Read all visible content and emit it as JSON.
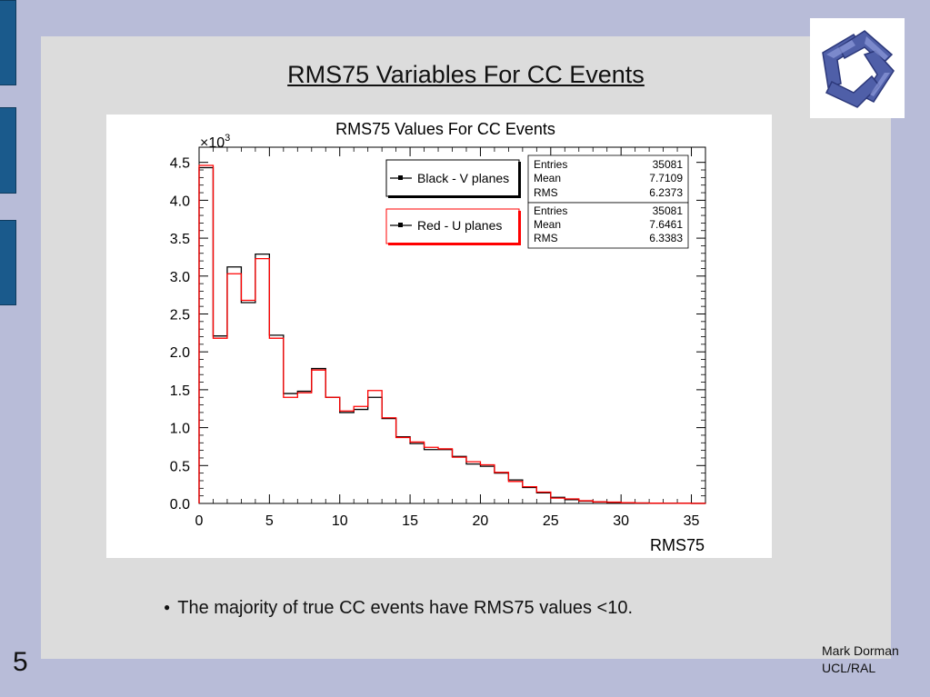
{
  "slide": {
    "title": "RMS75 Variables For CC Events",
    "bullet": "The majority of true CC events have RMS75 values <10.",
    "bullet_glyph": "●",
    "page_number": "5",
    "author_line1": "Mark Dorman",
    "author_line2": "UCL/RAL"
  },
  "colors": {
    "background": "#b8bcd8",
    "panel": "#dcdcdc",
    "sidebar_tab": "#1a5a8c",
    "series_v": "#000000",
    "series_u": "#ff0000",
    "logo": "#4a5aa0"
  },
  "logo": {
    "icon": "triskelion-logo-icon"
  },
  "chart_data": {
    "type": "bar",
    "title": "RMS75 Values For CC Events",
    "xlabel": "RMS75",
    "ylabel": "",
    "y_multiplier": "×10",
    "y_multiplier_exp": "3",
    "xlim": [
      0,
      36
    ],
    "ylim": [
      0,
      4.7
    ],
    "x_ticks": [
      0,
      5,
      10,
      15,
      20,
      25,
      30,
      35
    ],
    "y_ticks": [
      "0.0",
      "0.5",
      "1.0",
      "1.5",
      "2.0",
      "2.5",
      "3.0",
      "3.5",
      "4.0",
      "4.5"
    ],
    "bin_width": 1,
    "bin_edges_start": 0,
    "series": [
      {
        "name": "Black - V planes",
        "values": [
          4.43,
          2.21,
          3.12,
          2.65,
          3.29,
          2.22,
          1.45,
          1.48,
          1.78,
          1.4,
          1.2,
          1.24,
          1.4,
          1.12,
          0.88,
          0.79,
          0.71,
          0.71,
          0.62,
          0.52,
          0.49,
          0.4,
          0.31,
          0.21,
          0.14,
          0.08,
          0.05,
          0.03,
          0.02,
          0.015,
          0.01,
          0.006,
          0.004,
          0.003,
          0.002,
          0.001
        ],
        "stats": {
          "entries_label": "Entries",
          "entries": "35081",
          "mean_label": "Mean",
          "mean": "7.7109",
          "rms_label": "RMS",
          "rms": "6.2373"
        }
      },
      {
        "name": "Red - U planes",
        "values": [
          4.46,
          2.18,
          3.03,
          2.68,
          3.23,
          2.18,
          1.4,
          1.46,
          1.76,
          1.4,
          1.22,
          1.28,
          1.49,
          1.13,
          0.87,
          0.81,
          0.74,
          0.72,
          0.61,
          0.55,
          0.51,
          0.41,
          0.29,
          0.22,
          0.15,
          0.07,
          0.06,
          0.035,
          0.02,
          0.017,
          0.01,
          0.006,
          0.004,
          0.003,
          0.002,
          0.001
        ],
        "stats": {
          "entries_label": "Entries",
          "entries": "35081",
          "mean_label": "Mean",
          "mean": "7.6461",
          "rms_label": "RMS",
          "rms": "6.3383"
        }
      }
    ],
    "legend_position": "top-right",
    "grid": false
  }
}
